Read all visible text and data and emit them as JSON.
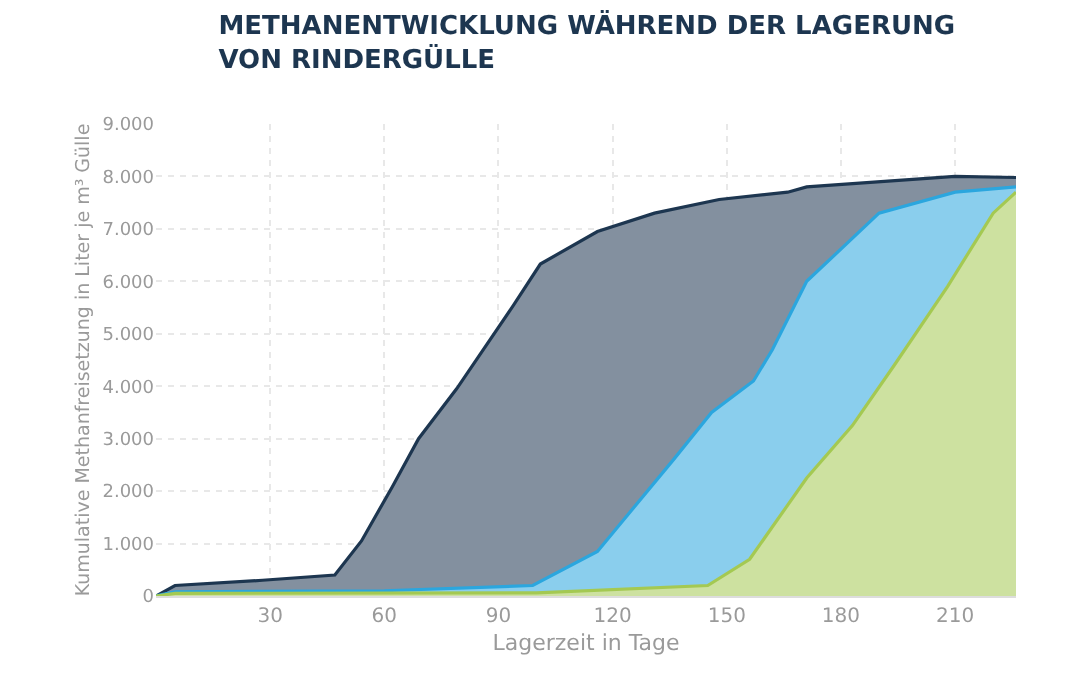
{
  "chart_data": {
    "type": "area",
    "title": "METHANENTWICKLUNG WÄHREND DER LAGERUNG\nVON RINDERGÜLLE",
    "xlabel": "Lagerzeit in Tage",
    "ylabel": "Kumulative Methanfreisetzung in Liter je m³ Gülle",
    "series": [
      {
        "color": "#1d3650",
        "x": [
          0,
          5,
          28,
          47,
          54,
          62,
          69,
          79,
          94,
          101,
          116,
          131,
          148,
          166,
          171,
          210,
          226
        ],
        "values": [
          0,
          200,
          300,
          400,
          1050,
          2070,
          3000,
          3950,
          5550,
          6330,
          6950,
          7300,
          7560,
          7700,
          7800,
          8000,
          7980
        ]
      },
      {
        "color": "#2ba6de",
        "x": [
          0,
          5,
          60,
          99,
          116,
          136,
          146,
          157,
          162,
          171,
          190,
          210,
          226
        ],
        "values": [
          0,
          80,
          100,
          200,
          850,
          2600,
          3500,
          4100,
          4700,
          6000,
          7300,
          7700,
          7800
        ]
      },
      {
        "color": "#a4c952",
        "x": [
          0,
          5,
          100,
          145,
          156,
          171,
          183,
          194,
          208,
          220,
          226
        ],
        "values": [
          0,
          50,
          60,
          200,
          700,
          2250,
          3250,
          4400,
          5900,
          7300,
          7700
        ]
      }
    ],
    "xlim": [
      0,
      226
    ],
    "xticks": [
      30,
      60,
      90,
      120,
      150,
      180,
      210
    ],
    "ylim": [
      0,
      9000
    ],
    "yticks": [
      0,
      {
        "value": 1000,
        "label": "1.000"
      },
      {
        "value": 2000,
        "label": "2.000"
      },
      {
        "value": 3000,
        "label": "3.000"
      },
      {
        "value": 4000,
        "label": "4.000"
      },
      {
        "value": 5000,
        "label": "5.000"
      },
      {
        "value": 6000,
        "label": "6.000"
      },
      {
        "value": 7000,
        "label": "7.000"
      },
      {
        "value": 8000,
        "label": "8.000"
      },
      {
        "value": 9000,
        "label": "9.000"
      }
    ],
    "grid": true
  }
}
